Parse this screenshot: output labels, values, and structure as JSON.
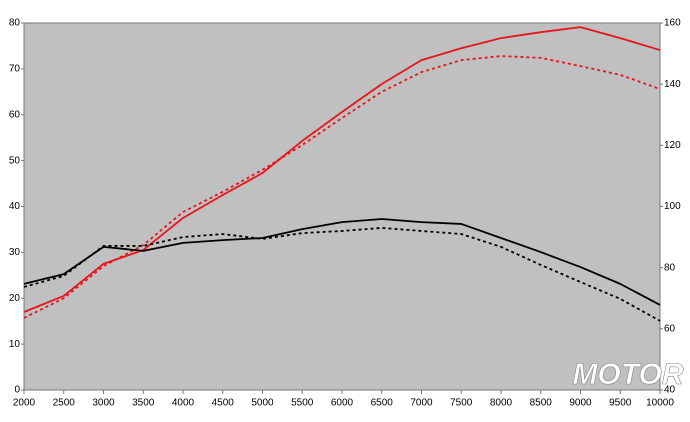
{
  "chart_data": {
    "type": "line",
    "x": [
      2000,
      2500,
      3000,
      3500,
      4000,
      4500,
      5000,
      5500,
      6000,
      6500,
      7000,
      7500,
      8000,
      8500,
      9000,
      9500,
      10000
    ],
    "xlim": [
      2000,
      10000
    ],
    "xticks": [
      2000,
      2500,
      3000,
      3500,
      4000,
      4500,
      5000,
      5500,
      6000,
      6500,
      7000,
      7500,
      8000,
      8500,
      9000,
      9500,
      10000
    ],
    "ylim": [
      0,
      80
    ],
    "yticks": [
      0,
      10,
      20,
      30,
      40,
      50,
      60,
      70,
      80
    ],
    "y2lim": [
      40,
      160
    ],
    "y2ticks": [
      40,
      60,
      80,
      100,
      120,
      140,
      160
    ],
    "grid": false,
    "series": [
      {
        "color": "#e8141b",
        "dash": "solid",
        "values": [
          17,
          20.5,
          27.5,
          30.5,
          37.5,
          42.5,
          47.3,
          54.3,
          60.6,
          66.7,
          71.9,
          74.5,
          76.7,
          78,
          79.1,
          76.7,
          74.1
        ]
      },
      {
        "color": "#e8141b",
        "dash": "dotted",
        "values": [
          15.7,
          20,
          27,
          31.6,
          38.8,
          43.2,
          48,
          53.4,
          59.3,
          65,
          69.3,
          71.9,
          72.8,
          72.4,
          70.6,
          68.7,
          65.6
        ]
      },
      {
        "color": "#000000",
        "dash": "solid",
        "axis": "y2",
        "values": [
          74.7,
          77.9,
          86.8,
          85.5,
          88.1,
          89,
          89.7,
          92.6,
          94.9,
          95.9,
          94.9,
          94.3,
          89.7,
          85.1,
          80.2,
          74.7,
          67.8
        ]
      },
      {
        "color": "#000000",
        "dash": "dotted",
        "axis": "y2",
        "values": [
          73.7,
          77.3,
          87.1,
          87.1,
          90,
          91,
          89.4,
          91.3,
          92,
          93,
          92,
          91,
          86.8,
          80.9,
          75.3,
          69.8,
          62.6
        ]
      }
    ],
    "logo": "MOTOR"
  }
}
